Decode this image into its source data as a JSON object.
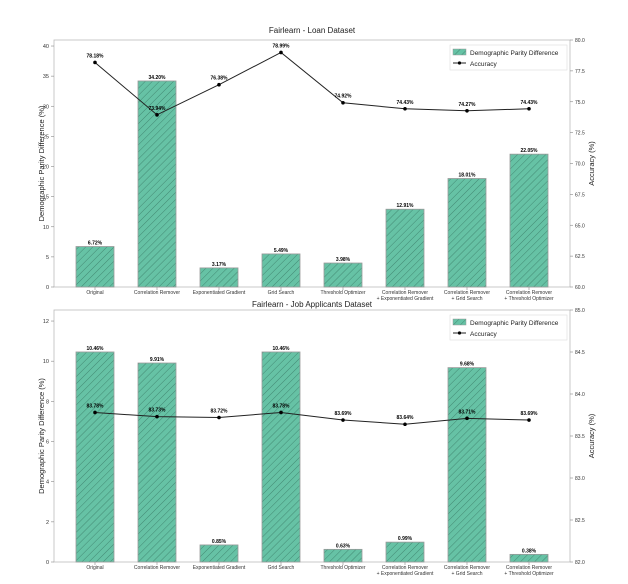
{
  "chart_data": [
    {
      "type": "bar+line",
      "title": "Fairlearn - Loan Dataset",
      "categories": [
        "Original",
        "Correlation Remover",
        "Exponentiated Gradient",
        "Grid Search",
        "Threshold Optimizer",
        "Correlation Remover\n+ Exponentiated Gradient",
        "Correlation Remover\n+ Grid Search",
        "Correlation Remover\n+ Threshold Optimizer"
      ],
      "series": [
        {
          "name": "Demographic Parity Difference",
          "axis": "left",
          "kind": "bar",
          "values": [
            6.72,
            34.2,
            3.17,
            5.49,
            3.98,
            12.91,
            18.01,
            22.05
          ],
          "labels": [
            "6.72%",
            "34.20%",
            "3.17%",
            "5.49%",
            "3.98%",
            "12.91%",
            "18.01%",
            "22.05%"
          ]
        },
        {
          "name": "Accuracy",
          "axis": "right",
          "kind": "line",
          "values": [
            78.18,
            73.94,
            76.38,
            78.99,
            74.92,
            74.43,
            74.27,
            74.43
          ],
          "labels": [
            "78.18%",
            "73.94%",
            "76.38%",
            "78.99%",
            "74.92%",
            "74.43%",
            "74.27%",
            "74.43%"
          ]
        }
      ],
      "ylabel": "Demographic Parity Difference (%)",
      "y2label": "Accuracy (%)",
      "ylim": [
        0,
        41
      ],
      "yticks": [
        0,
        5,
        10,
        15,
        20,
        25,
        30,
        35,
        40
      ],
      "y2lim": [
        60,
        80
      ],
      "y2ticks": [
        "60.0",
        "62.5",
        "65.0",
        "67.5",
        "70.0",
        "72.5",
        "75.0",
        "77.5",
        "80.0"
      ],
      "legend": "top-right",
      "colors": {
        "bar": "#66c2a5",
        "line": "#000000"
      }
    },
    {
      "type": "bar+line",
      "title": "Fairlearn - Job Applicants Dataset",
      "categories": [
        "Original",
        "Correlation Remover",
        "Exponentiated Gradient",
        "Grid Search",
        "Threshold Optimizer",
        "Correlation Remover\n+ Exponentiated Gradient",
        "Correlation Remover\n+ Grid Search",
        "Correlation Remover\n+ Threshold Optimizer"
      ],
      "series": [
        {
          "name": "Demographic Parity Difference",
          "axis": "left",
          "kind": "bar",
          "values": [
            10.46,
            9.91,
            0.85,
            10.46,
            0.63,
            0.99,
            9.68,
            0.38
          ],
          "labels": [
            "10.46%",
            "9.91%",
            "0.85%",
            "10.46%",
            "0.63%",
            "0.99%",
            "9.68%",
            "0.38%"
          ]
        },
        {
          "name": "Accuracy",
          "axis": "right",
          "kind": "line",
          "values": [
            83.78,
            83.73,
            83.72,
            83.78,
            83.69,
            83.64,
            83.71,
            83.69
          ],
          "labels": [
            "83.78%",
            "83.73%",
            "83.72%",
            "83.78%",
            "83.69%",
            "83.64%",
            "83.71%",
            "83.69%"
          ]
        }
      ],
      "ylabel": "Demographic Parity Difference (%)",
      "y2label": "Accuracy (%)",
      "ylim": [
        0,
        12.55
      ],
      "yticks": [
        0,
        2,
        4,
        6,
        8,
        10,
        12
      ],
      "y2lim": [
        82,
        85
      ],
      "y2ticks": [
        "82.0",
        "82.5",
        "83.0",
        "83.5",
        "84.0",
        "84.5",
        "85.0"
      ],
      "legend": "top-right",
      "colors": {
        "bar": "#66c2a5",
        "line": "#000000"
      }
    }
  ]
}
